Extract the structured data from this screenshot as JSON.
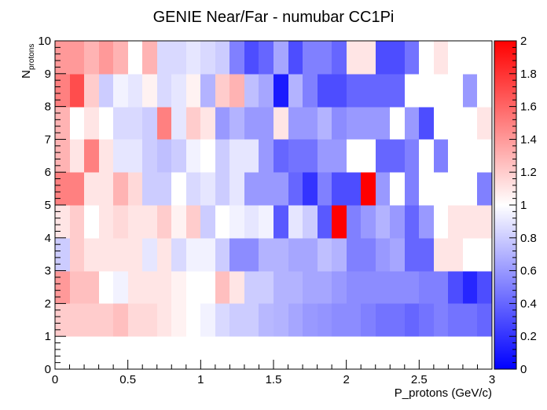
{
  "chart_data": {
    "type": "heatmap",
    "title": "GENIE Near/Far - numubar CC1Pi",
    "xlabel": "P_protons (GeV/c)",
    "ylabel_main": "N",
    "ylabel_sub": "protons",
    "xlim": [
      0,
      3
    ],
    "ylim": [
      0,
      10
    ],
    "zlim": [
      0,
      2
    ],
    "xticks": [
      "0",
      "0.5",
      "1",
      "1.5",
      "2",
      "2.5",
      "3"
    ],
    "yticks": [
      "0",
      "1",
      "2",
      "3",
      "4",
      "5",
      "6",
      "7",
      "8",
      "9",
      "10"
    ],
    "zticks": [
      "0",
      "0.2",
      "0.4",
      "0.6",
      "0.8",
      "1",
      "1.2",
      "1.4",
      "1.6",
      "1.8",
      "2"
    ],
    "x_bin_width": 0.1,
    "y_bin_width": 1,
    "colorscale": [
      "#0000ff",
      "#ffffff",
      "#ff0000"
    ],
    "rows": [
      {
        "y": 0,
        "values": [
          1,
          1,
          1,
          1,
          1,
          1,
          1,
          1,
          1,
          1,
          1,
          1,
          1,
          1,
          1,
          1,
          1,
          1,
          1,
          1,
          1,
          1,
          1,
          1,
          1,
          1,
          1,
          1,
          1,
          1
        ]
      },
      {
        "y": 1,
        "values": [
          1.2,
          1.2,
          1.2,
          1.2,
          1.25,
          1.15,
          1.15,
          1.1,
          1.05,
          1.0,
          0.95,
          0.85,
          0.8,
          0.8,
          0.72,
          0.7,
          0.65,
          0.6,
          0.58,
          0.55,
          0.55,
          0.5,
          0.45,
          0.45,
          0.4,
          0.45,
          0.5,
          0.45,
          0.45,
          0.4
        ]
      },
      {
        "y": 2,
        "values": [
          1.4,
          1.25,
          1.25,
          1.0,
          0.95,
          1.1,
          1.1,
          1.1,
          1.05,
          1.0,
          1.0,
          1.25,
          1.1,
          0.8,
          0.8,
          0.7,
          0.7,
          0.65,
          0.65,
          0.6,
          0.55,
          0.55,
          0.55,
          0.55,
          0.55,
          0.5,
          0.5,
          0.3,
          0.15,
          0.3
        ]
      },
      {
        "y": 3,
        "values": [
          0.8,
          1.2,
          1.1,
          1.1,
          1.1,
          1.1,
          0.9,
          1.1,
          0.85,
          0.95,
          0.95,
          0.8,
          0.55,
          0.55,
          0.7,
          0.7,
          0.65,
          0.65,
          0.75,
          0.7,
          0.5,
          0.5,
          0.6,
          0.65,
          0.4,
          0.4,
          1.1,
          1.1,
          1.0,
          1.0
        ]
      },
      {
        "y": 4,
        "values": [
          1.1,
          1.2,
          1.0,
          1.1,
          1.15,
          1.1,
          1.1,
          1.2,
          1.05,
          1.2,
          0.8,
          1.0,
          0.95,
          0.9,
          0.95,
          0.35,
          0.9,
          0.8,
          0.35,
          2.0,
          0.5,
          0.6,
          0.7,
          0.6,
          0.4,
          0.6,
          1.0,
          1.1,
          1.1,
          1.1
        ]
      },
      {
        "y": 5,
        "values": [
          1.5,
          1.5,
          1.1,
          1.1,
          1.3,
          1.15,
          0.8,
          0.8,
          1.0,
          0.85,
          0.9,
          0.8,
          0.9,
          0.6,
          0.6,
          0.6,
          0.4,
          0.2,
          0.5,
          0.3,
          0.3,
          2.0,
          0.6,
          1.0,
          0.5,
          1.0,
          1.0,
          1.0,
          1.0,
          0.5
        ]
      },
      {
        "y": 6,
        "values": [
          1.3,
          1.1,
          1.5,
          1.1,
          0.9,
          0.9,
          0.8,
          0.75,
          0.8,
          0.95,
          1.0,
          0.8,
          0.9,
          0.9,
          0.6,
          0.4,
          0.45,
          0.45,
          0.6,
          0.6,
          1.0,
          1.0,
          0.4,
          0.4,
          0.5,
          1.0,
          0.5,
          1.0,
          1.0,
          1.0
        ]
      },
      {
        "y": 7,
        "values": [
          1.3,
          1.0,
          1.1,
          1.0,
          0.85,
          0.85,
          0.8,
          1.5,
          0.9,
          1.2,
          1.1,
          0.6,
          0.7,
          0.6,
          0.6,
          1.1,
          0.6,
          0.6,
          0.7,
          0.55,
          0.6,
          0.6,
          0.6,
          1.0,
          0.6,
          0.3,
          1.0,
          1.0,
          1.0,
          1.1
        ]
      },
      {
        "y": 8,
        "values": [
          1.5,
          1.7,
          1.2,
          0.8,
          0.95,
          0.9,
          1.05,
          0.85,
          0.9,
          1.05,
          0.7,
          1.2,
          1.3,
          0.75,
          0.65,
          0.1,
          0.7,
          0.5,
          0.3,
          0.3,
          0.4,
          0.4,
          0.4,
          0.4,
          1.0,
          1.0,
          1.0,
          1.0,
          0.6,
          1.0
        ]
      },
      {
        "y": 9,
        "values": [
          1.4,
          1.4,
          1.3,
          1.4,
          1.3,
          1.0,
          1.3,
          0.85,
          0.85,
          0.9,
          0.85,
          0.8,
          0.5,
          0.3,
          0.4,
          0.65,
          0.3,
          0.5,
          0.5,
          0.4,
          1.1,
          1.1,
          0.3,
          0.3,
          0.45,
          1.0,
          1.1,
          1.0,
          1.0,
          1.0
        ]
      }
    ]
  }
}
